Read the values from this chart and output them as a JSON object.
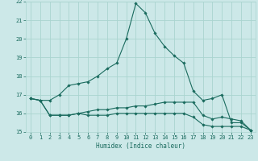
{
  "xlabel": "Humidex (Indice chaleur)",
  "bg_color": "#cce8e8",
  "grid_color": "#aad4d0",
  "line_color": "#1a6b5e",
  "xlim": [
    -0.5,
    23.5
  ],
  "ylim": [
    15,
    22
  ],
  "yticks": [
    15,
    16,
    17,
    18,
    19,
    20,
    21,
    22
  ],
  "xticks": [
    0,
    1,
    2,
    3,
    4,
    5,
    6,
    7,
    8,
    9,
    10,
    11,
    12,
    13,
    14,
    15,
    16,
    17,
    18,
    19,
    20,
    21,
    22,
    23
  ],
  "line1_y": [
    16.8,
    16.7,
    16.7,
    17.0,
    17.5,
    17.6,
    17.7,
    18.0,
    18.4,
    18.7,
    20.0,
    21.9,
    21.4,
    20.3,
    19.6,
    19.1,
    18.7,
    17.2,
    16.7,
    16.8,
    17.0,
    15.5,
    15.5,
    15.1
  ],
  "line2_y": [
    16.8,
    16.7,
    15.9,
    15.9,
    15.9,
    16.0,
    16.1,
    16.2,
    16.2,
    16.3,
    16.3,
    16.4,
    16.4,
    16.5,
    16.6,
    16.6,
    16.6,
    16.6,
    15.9,
    15.7,
    15.8,
    15.7,
    15.6,
    15.1
  ],
  "line3_y": [
    16.8,
    16.7,
    15.9,
    15.9,
    15.9,
    16.0,
    15.9,
    15.9,
    15.9,
    16.0,
    16.0,
    16.0,
    16.0,
    16.0,
    16.0,
    16.0,
    16.0,
    15.8,
    15.4,
    15.3,
    15.3,
    15.3,
    15.3,
    15.1
  ]
}
